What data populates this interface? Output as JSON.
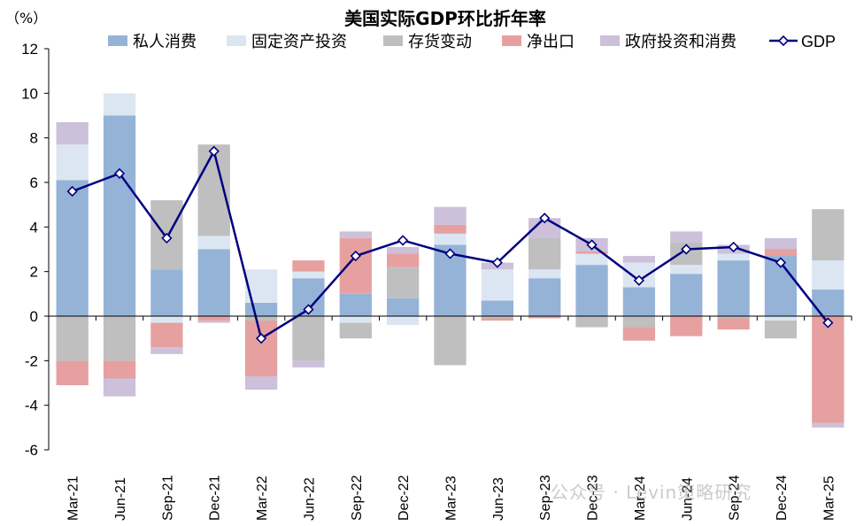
{
  "chart_data": {
    "type": "bar",
    "title": "美国实际GDP环比折年率",
    "unit_label": "（%）",
    "xlabel": "",
    "ylabel": "",
    "ylim": [
      -6,
      12
    ],
    "yticks": [
      -6,
      -4,
      -2,
      0,
      2,
      4,
      6,
      8,
      10,
      12
    ],
    "grid": false,
    "legend_position": "top",
    "categories": [
      "Mar-21",
      "Jun-21",
      "Sep-21",
      "Dec-21",
      "Mar-22",
      "Jun-22",
      "Sep-22",
      "Dec-22",
      "Mar-23",
      "Jun-23",
      "Sep-23",
      "Dec-23",
      "Mar-24",
      "Jun-24",
      "Sep-24",
      "Dec-24",
      "Mar-25"
    ],
    "series": [
      {
        "name": "私人消费",
        "kind": "bar",
        "color": "#95B3D7",
        "values": [
          6.1,
          9.0,
          2.1,
          3.0,
          0.6,
          1.7,
          1.0,
          0.8,
          3.2,
          0.7,
          1.7,
          2.3,
          1.3,
          1.9,
          2.5,
          2.7,
          1.2
        ]
      },
      {
        "name": "固定资产投资",
        "kind": "bar",
        "color": "#DCE6F2",
        "values": [
          1.6,
          1.0,
          -0.3,
          0.6,
          1.5,
          0.3,
          -0.3,
          -0.4,
          0.5,
          1.4,
          0.4,
          0.5,
          1.1,
          0.4,
          0.3,
          -0.2,
          1.3
        ]
      },
      {
        "name": "存货变动",
        "kind": "bar",
        "color": "#BFBFBF",
        "values": [
          -2.0,
          -2.0,
          3.1,
          4.1,
          -0.2,
          -2.0,
          -0.7,
          1.4,
          -2.2,
          -0.1,
          1.4,
          -0.5,
          -0.5,
          1.0,
          -0.1,
          -0.8,
          2.3
        ]
      },
      {
        "name": "净出口",
        "kind": "bar",
        "color": "#E6A0A0",
        "values": [
          -1.1,
          -0.8,
          -1.1,
          -0.2,
          -2.5,
          0.5,
          2.5,
          0.6,
          0.4,
          -0.1,
          -0.1,
          0.1,
          -0.6,
          -0.9,
          -0.5,
          0.3,
          -4.8
        ]
      },
      {
        "name": "政府投资和消费",
        "kind": "bar",
        "color": "#CCC0DA",
        "values": [
          1.0,
          -0.8,
          -0.3,
          -0.1,
          -0.6,
          -0.3,
          0.3,
          0.3,
          0.8,
          0.3,
          0.9,
          0.6,
          0.3,
          0.5,
          0.4,
          0.5,
          -0.2
        ]
      },
      {
        "name": "GDP",
        "kind": "line",
        "color": "#000080",
        "values": [
          5.6,
          6.4,
          3.5,
          7.4,
          -1.0,
          0.3,
          2.7,
          3.4,
          2.8,
          2.4,
          4.4,
          3.2,
          1.6,
          3.0,
          3.1,
          2.4,
          -0.3
        ]
      }
    ]
  },
  "watermark": "公众号 · Levin策略研究"
}
